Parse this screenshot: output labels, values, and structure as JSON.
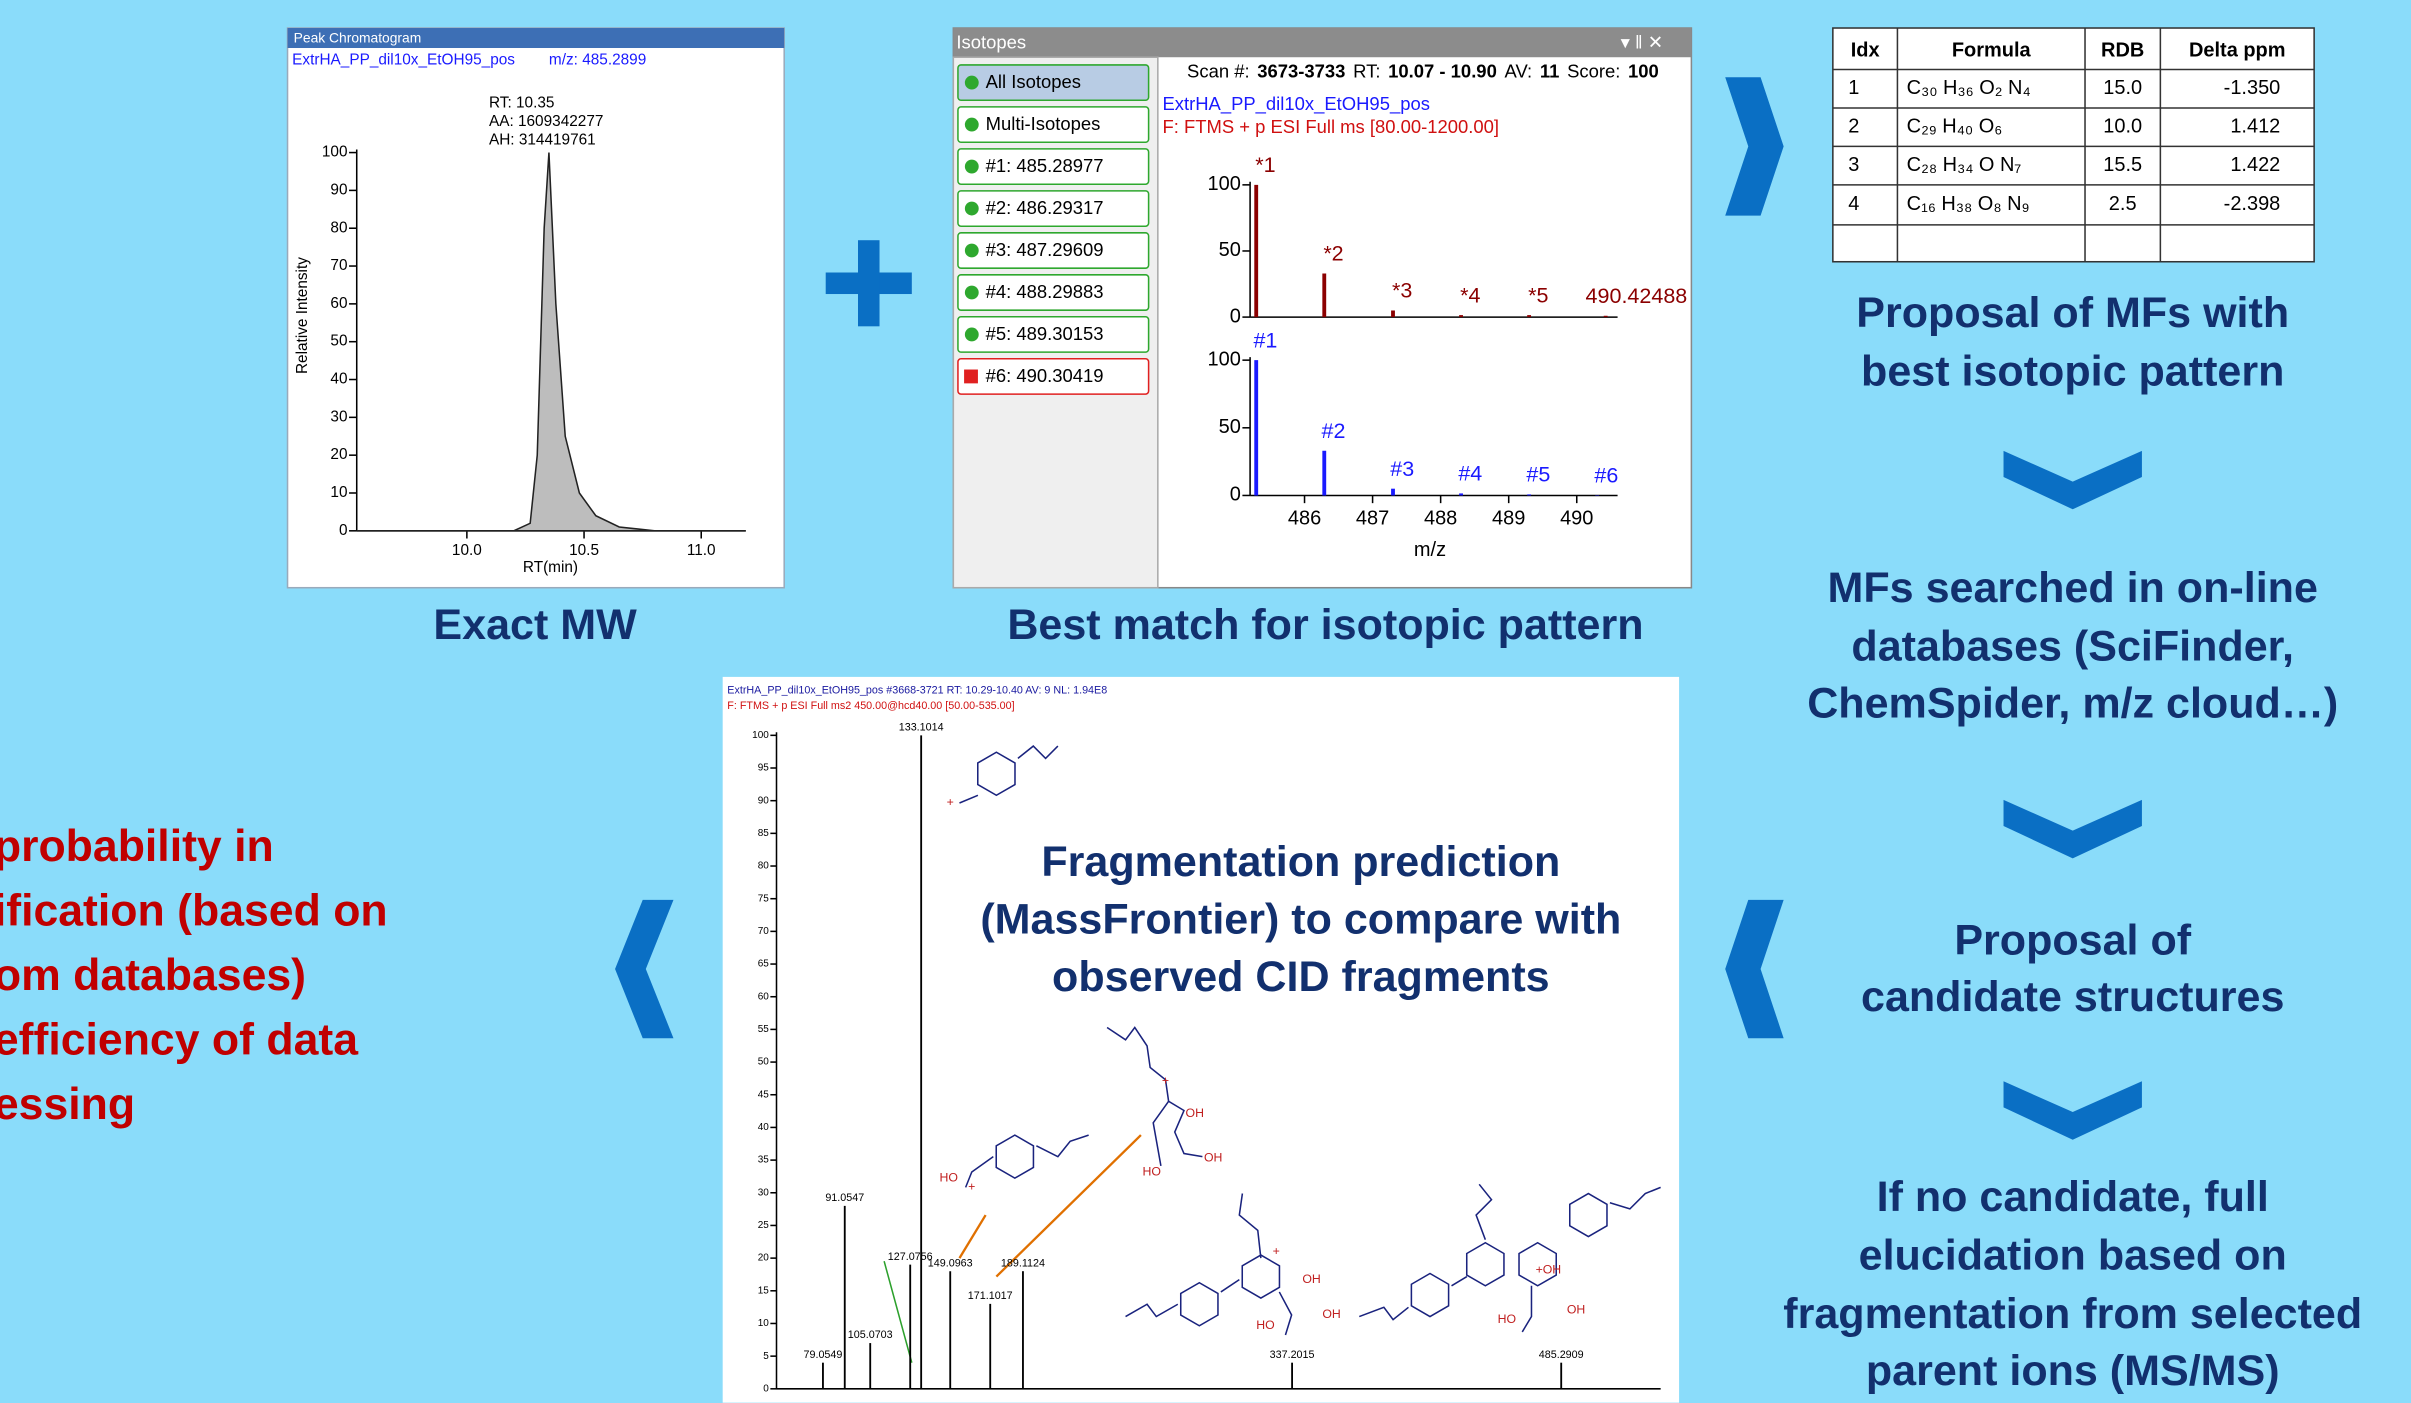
{
  "chart_data": [
    {
      "type": "area",
      "title": "Peak Chromatogram",
      "subtitle": "ExtrHA_PP_dil10x_EtOH95_pos",
      "mz_label": "m/z: 485.2899",
      "annotations": [
        "RT: 10.35",
        "AA: 1609342277",
        "AH: 314419761"
      ],
      "x": [
        9.53,
        10.2,
        10.27,
        10.3,
        10.33,
        10.35,
        10.38,
        10.42,
        10.48,
        10.55,
        10.65,
        10.8,
        11.19
      ],
      "values": [
        0,
        0,
        2,
        20,
        80,
        100,
        60,
        25,
        10,
        4,
        1,
        0,
        0
      ],
      "color": "#bdbdbd",
      "xlabel": "RT(min)",
      "ylabel": "Relative Intensity",
      "xlim": [
        9.53,
        11.19
      ],
      "ylim": [
        0,
        100
      ],
      "xticks": [
        {
          "value": 10,
          "label": "10.0"
        },
        {
          "value": 10.5,
          "label": "10.5"
        },
        {
          "value": 11,
          "label": "11.0"
        }
      ],
      "yticks": [
        0,
        10,
        20,
        30,
        40,
        50,
        60,
        70,
        80,
        90,
        100
      ]
    },
    {
      "type": "bar",
      "x": [
        485.29,
        486.29,
        487.3,
        488.3,
        489.3,
        490.42488
      ],
      "values": [
        100,
        33,
        5,
        1.5,
        1.5,
        1
      ],
      "peak_labels": [
        "*1",
        "*2",
        "*3",
        "*4",
        "*5",
        null
      ],
      "color": "#8b0000",
      "xlim": [
        485.2,
        490.6
      ],
      "ylim": [
        0,
        100
      ],
      "yticks": [
        0,
        50,
        100
      ]
    },
    {
      "type": "bar",
      "x": [
        485.29,
        486.29,
        487.3,
        488.3,
        489.3,
        490.3
      ],
      "values": [
        100,
        33,
        5,
        1.5,
        0.8,
        0.3
      ],
      "peak_labels": [
        "#1",
        "#2",
        "#3",
        "#4",
        "#5",
        "#6"
      ],
      "color": "#1a1aff",
      "xlabel": "m/z",
      "xlim": [
        485.2,
        490.6
      ],
      "ylim": [
        0,
        100
      ],
      "yticks": [
        0,
        50,
        100
      ],
      "xticks": [
        486,
        487,
        488,
        489,
        490
      ]
    },
    {
      "type": "bar",
      "title": "ExtrHA_PP_dil10x_EtOH95_pos #3668-3721  RT: 10.29-10.40  AV: 9  NL: 1.94E8",
      "subtitle": "F: FTMS + p ESI Full ms2 450.00@hcd40.00 [50.00-535.00]",
      "x": [
        79.0549,
        91.0547,
        105.0703,
        127.0756,
        133.1014,
        149.0963,
        171.1017,
        189.1124,
        337.2015,
        485.2909
      ],
      "values": [
        4,
        28,
        7,
        19,
        100,
        18,
        13,
        18,
        4,
        4
      ],
      "color": "#000000",
      "xlim": [
        53.5,
        540
      ],
      "ylim": [
        0,
        100
      ],
      "yticks": [
        0,
        5,
        10,
        15,
        20,
        25,
        30,
        35,
        40,
        45,
        50,
        55,
        60,
        65,
        70,
        75,
        80,
        85,
        90,
        95,
        100
      ]
    }
  ],
  "captions": {
    "chromatogram": "Exact MW",
    "isotopes": "Best match for isotopic pattern"
  },
  "isotopes": {
    "title": "Isotopes",
    "scan_info": [
      "Scan #:",
      "3673-3733",
      "RT:",
      "10.07 - 10.90",
      "AV:",
      "11",
      "Score:",
      "100"
    ],
    "file": "ExtrHA_PP_dil10x_EtOH95_pos",
    "filter": "F: FTMS + p ESI Full ms [80.00-1200.00]",
    "list": [
      {
        "label": "All Isotopes",
        "color": "#2ea82e"
      },
      {
        "label": "Multi-Isotopes",
        "color": "#2ea82e"
      },
      {
        "label": "#1: 485.28977",
        "color": "#2ea82e"
      },
      {
        "label": "#2: 486.29317",
        "color": "#2ea82e"
      },
      {
        "label": "#3: 487.29609",
        "color": "#2ea82e"
      },
      {
        "label": "#4: 488.29883",
        "color": "#2ea82e"
      },
      {
        "label": "#5: 489.30153",
        "color": "#2ea82e"
      },
      {
        "label": "#6: 490.30419",
        "color": "#e02020"
      }
    ]
  },
  "table": {
    "header": [
      "Idx",
      "Formula",
      "RDB",
      "Delta ppm"
    ],
    "rows": [
      [
        "1",
        "C₃₀ H₃₆ O₂ N₄",
        "15.0",
        "-1.350"
      ],
      [
        "2",
        "C₂₉ H₄₀ O₆",
        "10.0",
        "1.412"
      ],
      [
        "3",
        "C₂₈ H₃₄ O N₇",
        "15.5",
        "1.422"
      ],
      [
        "4",
        "C₁₆ H₃₈ O₈ N₉",
        "2.5",
        "-2.398"
      ]
    ]
  },
  "flow": [
    [
      "Proposal of MFs with",
      "best isotopic pattern"
    ],
    [
      "MFs searched in on-line",
      "databases (SciFinder,",
      "ChemSpider, m/z cloud…)"
    ],
    [
      "Proposal of",
      "candidate structures"
    ],
    [
      "If no candidate, full",
      "elucidation based on",
      "fragmentation from selected",
      "parent ions (MS/MS)"
    ]
  ],
  "fragmentation": {
    "title": [
      "Fragmentation prediction",
      "(MassFrontier) to compare with",
      "observed CID fragments"
    ],
    "structure_labels": [
      "+",
      "HO",
      "+",
      "+",
      "OH",
      "HO",
      "OH",
      "+",
      "OH",
      "HO",
      "OH",
      "+OH",
      "HO",
      "OH"
    ]
  },
  "conclusion": [
    "probability in",
    "ification (based on",
    "om databases)",
    "efficiency of data",
    "essing"
  ]
}
